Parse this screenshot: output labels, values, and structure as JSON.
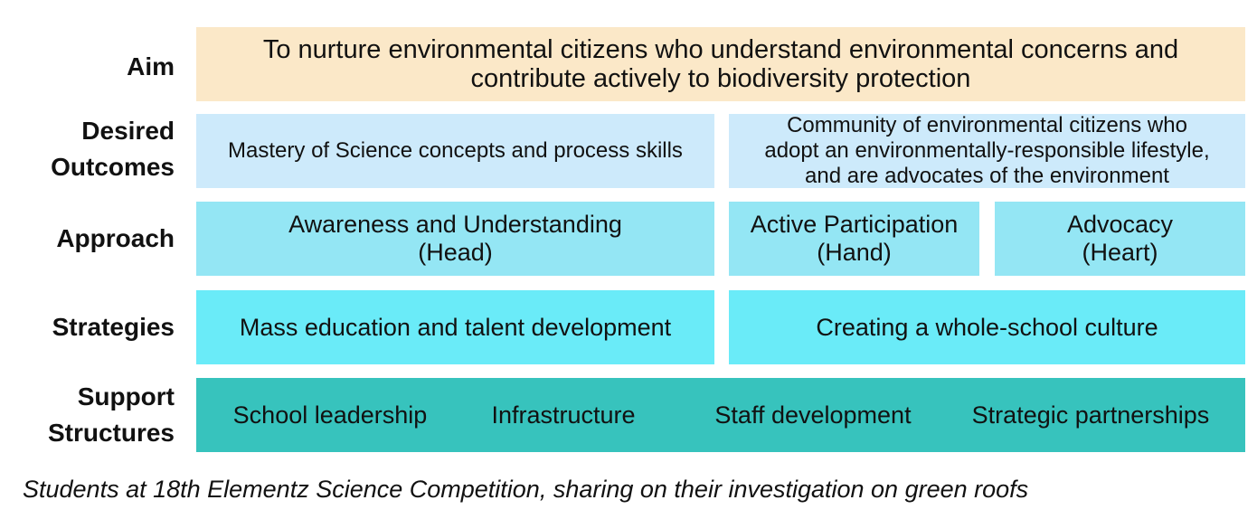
{
  "rows": {
    "aim": {
      "label": "Aim",
      "text_lines": [
        "To nurture environmental citizens who understand environmental concerns and",
        "contribute actively to biodiversity protection"
      ]
    },
    "desired_outcomes": {
      "label_lines": [
        "Desired",
        "Outcomes"
      ],
      "boxes": [
        {
          "text_lines": [
            "Mastery of Science concepts and process skills"
          ]
        },
        {
          "text_lines": [
            "Community of environmental citizens who",
            "adopt an environmentally-responsible lifestyle,",
            "and are advocates of the environment"
          ]
        }
      ]
    },
    "approach": {
      "label": "Approach",
      "boxes": [
        {
          "text_lines": [
            "Awareness and Understanding",
            "(Head)"
          ]
        },
        {
          "text_lines": [
            "Active Participation",
            "(Hand)"
          ]
        },
        {
          "text_lines": [
            "Advocacy",
            "(Heart)"
          ]
        }
      ]
    },
    "strategies": {
      "label": "Strategies",
      "boxes": [
        {
          "text": "Mass education and talent development"
        },
        {
          "text": "Creating a whole-school culture"
        }
      ]
    },
    "support_structures": {
      "label_lines": [
        "Support",
        "Structures"
      ],
      "items": [
        "School leadership",
        "Infrastructure",
        "Staff development",
        "Strategic partnerships"
      ]
    }
  },
  "caption": "Students at 18th Elementz Science Competition, sharing on their investigation on green roofs",
  "colors": {
    "aim": "#fbe8c8",
    "outcomes": "#cdeafb",
    "approach": "#94e6f4",
    "strategies": "#6aebf8",
    "support": "#37c3bd"
  }
}
